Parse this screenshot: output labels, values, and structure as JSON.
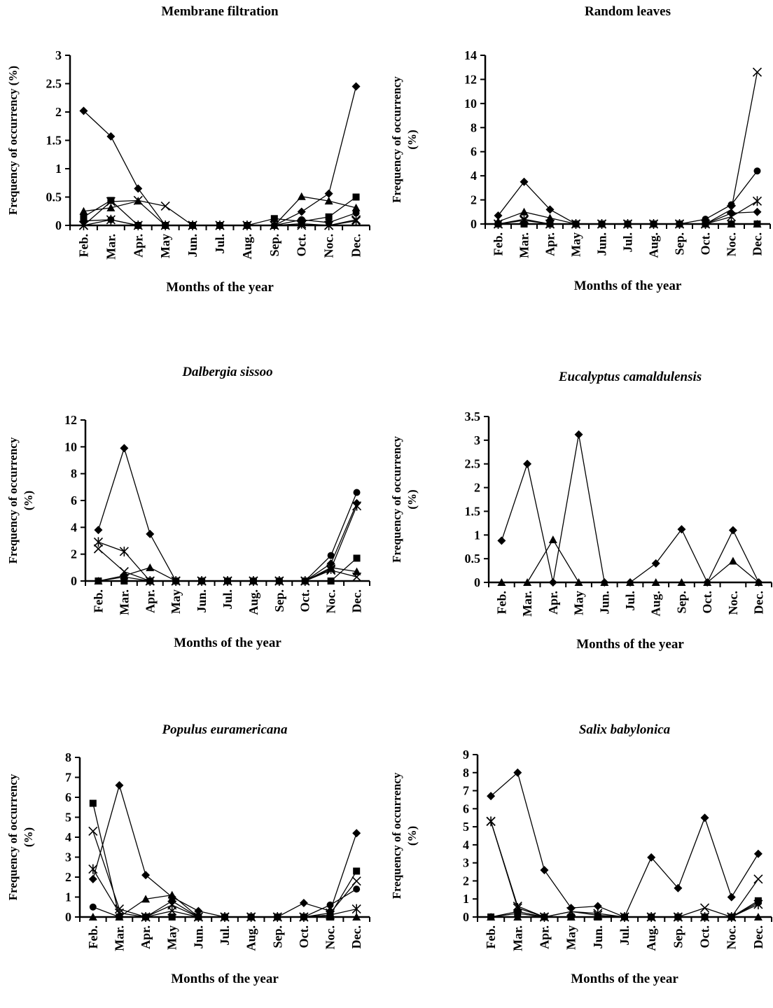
{
  "chart_data": [
    {
      "type": "line",
      "title": "Membrane filtration",
      "title_style": "bold",
      "xlabel": "Months of the year",
      "ylabel": "Frequency of occurrency (%)",
      "ylabel_lines": [
        "Frequency of occurrency (%)"
      ],
      "ylim": [
        0,
        3
      ],
      "yticks": [
        0,
        0.5,
        1,
        1.5,
        2,
        2.5,
        3
      ],
      "ytick_labels": [
        "0",
        "0.5",
        "1",
        "1.5",
        "2",
        "2.5",
        "3"
      ],
      "categories": [
        "Feb.",
        "Mar.",
        "Apr.",
        "May",
        "Jun.",
        "Jul.",
        "Aug.",
        "Sep.",
        "Oct.",
        "Noc.",
        "Dec."
      ],
      "grid": false,
      "legend": "none",
      "series": [
        {
          "marker": "diamond",
          "values": [
            2.02,
            1.57,
            0.65,
            0,
            0,
            0,
            0,
            0,
            0.24,
            0.56,
            2.45
          ]
        },
        {
          "marker": "square",
          "values": [
            0.15,
            0.44,
            0,
            0,
            0,
            0,
            0,
            0.12,
            0.07,
            0.15,
            0.5
          ]
        },
        {
          "marker": "triangle",
          "values": [
            0.25,
            0.31,
            0.43,
            0,
            0,
            0,
            0,
            0,
            0.51,
            0.43,
            0.31
          ]
        },
        {
          "marker": "x",
          "values": [
            0,
            0.42,
            0.44,
            0.34,
            0,
            0,
            0,
            0,
            0,
            0,
            0.1
          ]
        },
        {
          "marker": "star",
          "values": [
            0,
            0.1,
            0,
            0,
            0,
            0,
            0,
            0,
            0.03,
            0,
            0.08
          ]
        },
        {
          "marker": "circle",
          "values": [
            0.08,
            0.1,
            0,
            0,
            0,
            0,
            0,
            0,
            0.1,
            0.05,
            0.22
          ]
        }
      ]
    },
    {
      "type": "line",
      "title": "Random leaves",
      "title_style": "bold",
      "xlabel": "Months of the year",
      "ylabel": "Frequency of occurrency (%)",
      "ylabel_lines": [
        "Frequency of occurrency",
        "(%)"
      ],
      "ylim": [
        0,
        14
      ],
      "yticks": [
        0,
        2,
        4,
        6,
        8,
        10,
        12,
        14
      ],
      "ytick_labels": [
        "0",
        "2",
        "4",
        "6",
        "8",
        "10",
        "12",
        "14"
      ],
      "categories": [
        "Feb.",
        "Mar.",
        "Apr.",
        "May",
        "Jun.",
        "Jul.",
        "Aug.",
        "Sep.",
        "Oct.",
        "Noc.",
        "Dec."
      ],
      "grid": false,
      "legend": "none",
      "series": [
        {
          "marker": "diamond",
          "values": [
            0.7,
            3.5,
            1.2,
            0,
            0,
            0,
            0,
            0,
            0,
            0.9,
            1.0
          ]
        },
        {
          "marker": "triangle",
          "values": [
            0.2,
            1.0,
            0.5,
            0,
            0,
            0,
            0,
            0,
            0,
            0,
            0
          ]
        },
        {
          "marker": "x",
          "values": [
            0,
            0.4,
            0,
            0,
            0,
            0,
            0,
            0,
            0,
            1.2,
            12.6
          ]
        },
        {
          "marker": "star",
          "values": [
            0,
            0.3,
            0,
            0,
            0,
            0,
            0,
            0,
            0,
            0.6,
            1.9
          ]
        },
        {
          "marker": "circle",
          "values": [
            0,
            0,
            0,
            0,
            0,
            0,
            0,
            0,
            0.4,
            1.6,
            4.4
          ]
        },
        {
          "marker": "square",
          "values": [
            0,
            0,
            0,
            0,
            0,
            0,
            0,
            0,
            0,
            0,
            0
          ]
        }
      ]
    },
    {
      "type": "line",
      "title": "Dalbergia sissoo",
      "title_style": "bold-italic",
      "xlabel": "Months of the year",
      "ylabel": "Frequency of occurrency (%)",
      "ylabel_lines": [
        "Frequency of occurrency",
        "(%)"
      ],
      "ylim": [
        0,
        12
      ],
      "yticks": [
        0,
        2,
        4,
        6,
        8,
        10,
        12
      ],
      "ytick_labels": [
        "0",
        "2",
        "4",
        "6",
        "8",
        "10",
        "12"
      ],
      "categories": [
        "Feb.",
        "Mar.",
        "Apr.",
        "May",
        "Jun.",
        "Jul.",
        "Aug.",
        "Sep.",
        "Oct.",
        "Noc.",
        "Dec."
      ],
      "grid": false,
      "legend": "none",
      "series": [
        {
          "marker": "diamond",
          "values": [
            3.8,
            9.9,
            3.5,
            0,
            0,
            0,
            0,
            0,
            0,
            1.3,
            5.8
          ]
        },
        {
          "marker": "star",
          "values": [
            2.9,
            2.2,
            0,
            0,
            0,
            0,
            0,
            0,
            0,
            0.9,
            5.6
          ]
        },
        {
          "marker": "x",
          "values": [
            2.4,
            0.7,
            0,
            0,
            0,
            0,
            0,
            0,
            0,
            0.8,
            0.3
          ]
        },
        {
          "marker": "circle",
          "values": [
            0,
            0.3,
            0,
            0,
            0,
            0,
            0,
            0,
            0,
            1.9,
            6.6
          ]
        },
        {
          "marker": "triangle",
          "values": [
            0,
            0.4,
            1.0,
            0,
            0,
            0,
            0,
            0,
            0,
            1.0,
            0.7
          ]
        },
        {
          "marker": "square",
          "values": [
            0,
            0,
            0,
            0,
            0,
            0,
            0,
            0,
            0,
            0,
            1.7
          ]
        }
      ]
    },
    {
      "type": "line",
      "title": "Eucalyptus camaldulensis",
      "title_style": "bold-italic",
      "xlabel": "Months of the year",
      "ylabel": "Frequency of occurrency (%)",
      "ylabel_lines": [
        "Frequency of occurrency",
        "(%)"
      ],
      "ylim": [
        0,
        3.5
      ],
      "yticks": [
        0,
        0.5,
        1,
        1.5,
        2,
        2.5,
        3,
        3.5
      ],
      "ytick_labels": [
        "0",
        "0.5",
        "1",
        "1.5",
        "2",
        "2.5",
        "3",
        "3.5"
      ],
      "categories": [
        "Feb.",
        "Mar.",
        "Apr.",
        "May",
        "Jun.",
        "Jul.",
        "Aug.",
        "Sep.",
        "Oct.",
        "Noc.",
        "Dec."
      ],
      "grid": false,
      "legend": "none",
      "series": [
        {
          "marker": "diamond",
          "values": [
            0.88,
            2.5,
            0,
            3.12,
            0,
            0,
            0.4,
            1.12,
            0,
            1.1,
            0
          ]
        },
        {
          "marker": "triangle",
          "values": [
            0,
            0,
            0.9,
            0,
            0,
            0,
            0,
            0,
            0,
            0.45,
            0
          ]
        }
      ]
    },
    {
      "type": "line",
      "title": "Populus euramericana",
      "title_style": "bold-italic",
      "xlabel": "Months of the year",
      "ylabel": "Frequency of occurrency (%)",
      "ylabel_lines": [
        "Frequency of occurrency",
        "(%)"
      ],
      "ylim": [
        0,
        8
      ],
      "yticks": [
        0,
        1,
        2,
        3,
        4,
        5,
        6,
        7,
        8
      ],
      "ytick_labels": [
        "0",
        "1",
        "2",
        "3",
        "4",
        "5",
        "6",
        "7",
        "8"
      ],
      "categories": [
        "Feb.",
        "Mar.",
        "Apr.",
        "May",
        "Jun.",
        "Jul.",
        "Aug.",
        "Sep.",
        "Oct.",
        "Noc.",
        "Dec."
      ],
      "grid": false,
      "legend": "none",
      "series": [
        {
          "marker": "diamond",
          "values": [
            1.9,
            6.6,
            2.1,
            1.0,
            0.3,
            0,
            0,
            0,
            0.7,
            0.3,
            4.2
          ]
        },
        {
          "marker": "square",
          "values": [
            5.7,
            0,
            0,
            0,
            0,
            0,
            0,
            0,
            0,
            0.1,
            2.3
          ]
        },
        {
          "marker": "x",
          "values": [
            4.3,
            0.4,
            0,
            0.3,
            0,
            0,
            0,
            0,
            0,
            0.2,
            1.8
          ]
        },
        {
          "marker": "star",
          "values": [
            2.4,
            0.2,
            0,
            0.6,
            0,
            0,
            0,
            0,
            0,
            0.1,
            0.4
          ]
        },
        {
          "marker": "circle",
          "values": [
            0.5,
            0,
            0,
            0.8,
            0,
            0,
            0,
            0,
            0,
            0.6,
            1.4
          ]
        },
        {
          "marker": "triangle",
          "values": [
            0,
            0,
            0.9,
            1.1,
            0,
            0,
            0,
            0,
            0,
            0,
            0
          ]
        }
      ]
    },
    {
      "type": "line",
      "title": "Salix babylonica",
      "title_style": "bold-italic",
      "xlabel": "Months of the year",
      "ylabel": "Frequency of occurrency (%)",
      "ylabel_lines": [
        "Frequency of occurrency",
        "(%)"
      ],
      "ylim": [
        0,
        9
      ],
      "yticks": [
        0,
        1,
        2,
        3,
        4,
        5,
        6,
        7,
        8,
        9
      ],
      "ytick_labels": [
        "0",
        "1",
        "2",
        "3",
        "4",
        "5",
        "6",
        "7",
        "8",
        "9"
      ],
      "categories": [
        "Feb.",
        "Mar.",
        "Apr.",
        "May",
        "Jun.",
        "Jul.",
        "Aug.",
        "Sep.",
        "Oct.",
        "Noc.",
        "Dec."
      ],
      "grid": false,
      "legend": "none",
      "series": [
        {
          "marker": "diamond",
          "values": [
            6.7,
            8.0,
            2.6,
            0.5,
            0.6,
            0,
            3.3,
            1.6,
            5.5,
            1.1,
            3.5
          ]
        },
        {
          "marker": "x",
          "values": [
            5.3,
            0.6,
            0,
            0.3,
            0.1,
            0,
            0,
            0,
            0.5,
            0,
            2.1
          ]
        },
        {
          "marker": "star",
          "values": [
            5.3,
            0.5,
            0,
            0.3,
            0.2,
            0,
            0,
            0,
            0,
            0,
            0.7
          ]
        },
        {
          "marker": "circle",
          "values": [
            0,
            0.3,
            0,
            0,
            0,
            0,
            0,
            0,
            0,
            0,
            0.8
          ]
        },
        {
          "marker": "square",
          "values": [
            0,
            0.2,
            0,
            0,
            0,
            0,
            0,
            0,
            0,
            0,
            0.9
          ]
        },
        {
          "marker": "triangle",
          "values": [
            0,
            0,
            0,
            0,
            0,
            0,
            0,
            0,
            0,
            0,
            0
          ]
        }
      ]
    }
  ]
}
